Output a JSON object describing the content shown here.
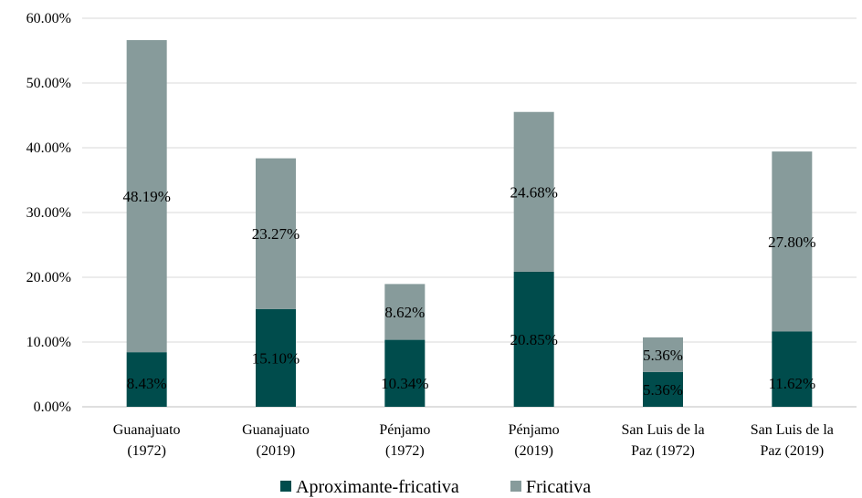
{
  "chart_data": {
    "type": "bar",
    "stacked": true,
    "categories": [
      [
        "Guanajuato",
        "(1972)"
      ],
      [
        "Guanajuato",
        "(2019)"
      ],
      [
        "Pénjamo",
        "(1972)"
      ],
      [
        "Pénjamo",
        "(2019)"
      ],
      [
        "San Luis de la",
        "Paz (1972)"
      ],
      [
        "San Luis de la",
        "Paz (2019)"
      ]
    ],
    "series": [
      {
        "name": "Aproximante-fricativa",
        "color": "#004c4c",
        "values": [
          8.43,
          15.1,
          10.34,
          20.85,
          5.36,
          11.62
        ],
        "labels": [
          "8.43%",
          "15.10%",
          "10.34%",
          "20.85%",
          "5.36%",
          "11.62%"
        ]
      },
      {
        "name": "Fricativa",
        "color": "#879b9b",
        "values": [
          48.19,
          23.27,
          8.62,
          24.68,
          5.36,
          27.8
        ],
        "labels": [
          "48.19%",
          "23.27%",
          "8.62%",
          "24.68%",
          "5.36%",
          "27.80%"
        ]
      }
    ],
    "ylim": [
      0,
      60
    ],
    "yticks": [
      "0.00%",
      "10.00%",
      "20.00%",
      "30.00%",
      "40.00%",
      "50.00%",
      "60.00%"
    ],
    "grid": true,
    "legend_position": "bottom"
  }
}
